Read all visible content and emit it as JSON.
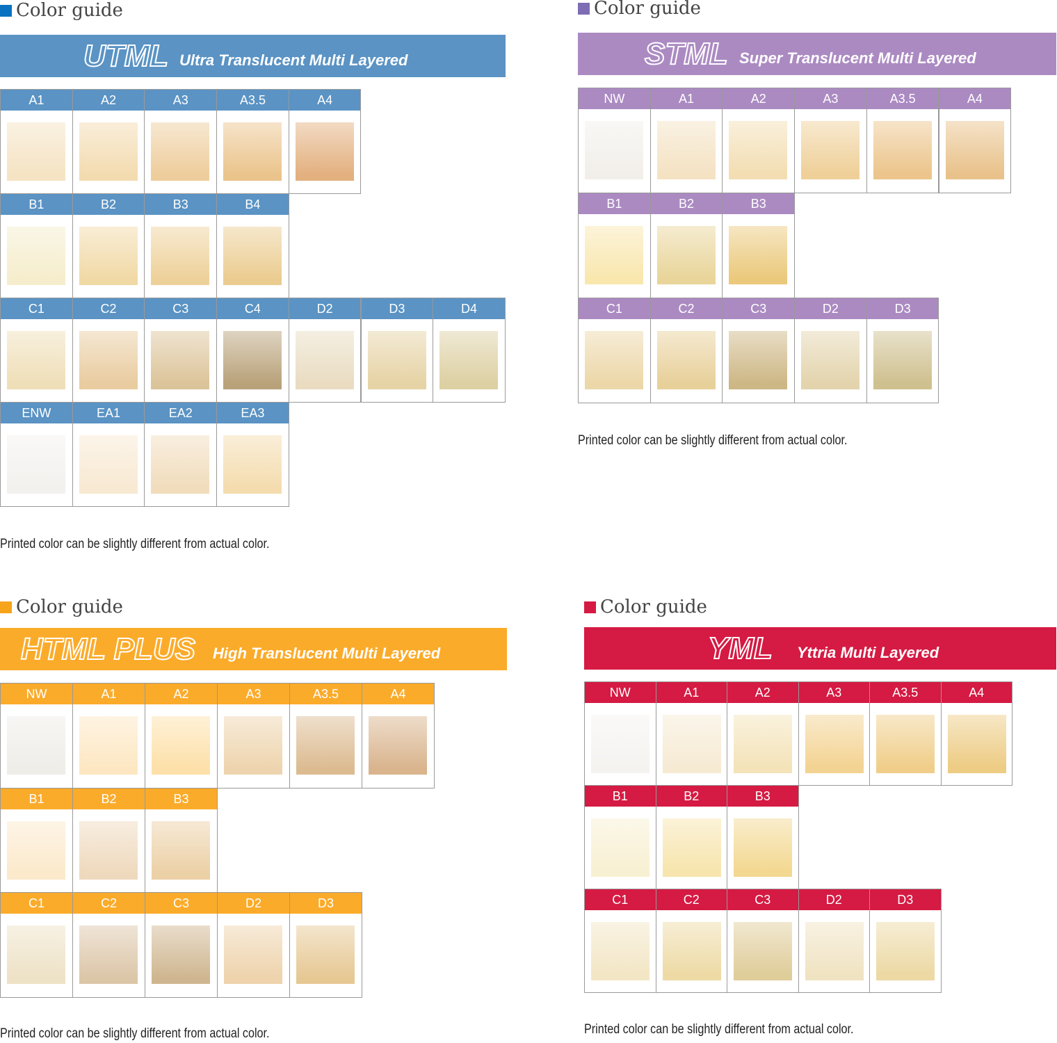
{
  "panels": [
    {
      "heading": "Color guide",
      "name": "UTML",
      "subtitle": "Ultra Translucent Multi Layered",
      "note": "Printed color can be slightly different from actual color.",
      "rows": [
        [
          {
            "label": "A1",
            "color": "#f5e3c3"
          },
          {
            "label": "A2",
            "color": "#f3dbb0"
          },
          {
            "label": "A3",
            "color": "#eecd9c"
          },
          {
            "label": "A3.5",
            "color": "#ebc48c"
          },
          {
            "label": "A4",
            "color": "#e3b07f"
          }
        ],
        [
          {
            "label": "B1",
            "color": "#f5edcc"
          },
          {
            "label": "B2",
            "color": "#f1d9a6"
          },
          {
            "label": "B3",
            "color": "#eed19a"
          },
          {
            "label": "B4",
            "color": "#ebcc90"
          }
        ],
        [
          {
            "label": "C1",
            "color": "#efdfb8"
          },
          {
            "label": "C2",
            "color": "#e9cca0"
          },
          {
            "label": "C3",
            "color": "#dcc49a"
          },
          {
            "label": "C4",
            "color": "#b9a27a"
          },
          {
            "label": "D2",
            "color": "#e9dcc1"
          },
          {
            "label": "D3",
            "color": "#e6d3a5"
          },
          {
            "label": "D4",
            "color": "#ddd0a3"
          }
        ],
        [
          {
            "label": "ENW",
            "color": "#f3f1ee"
          },
          {
            "label": "EA1",
            "color": "#f8e9d2"
          },
          {
            "label": "EA2",
            "color": "#f1dcbc"
          },
          {
            "label": "EA3",
            "color": "#f4dcae"
          }
        ]
      ]
    },
    {
      "heading": "Color guide",
      "name": "STML",
      "subtitle": "Super Translucent Multi Layered",
      "note": "Printed color can be slightly different from actual color.",
      "rows": [
        [
          {
            "label": "NW",
            "color": "#f2efea"
          },
          {
            "label": "A1",
            "color": "#f4e2c3"
          },
          {
            "label": "A2",
            "color": "#f3deb3"
          },
          {
            "label": "A3",
            "color": "#efd099"
          },
          {
            "label": "A3.5",
            "color": "#ecc58c"
          },
          {
            "label": "A4",
            "color": "#e9c28b"
          }
        ],
        [
          {
            "label": "B1",
            "color": "#f9e7ae"
          },
          {
            "label": "B2",
            "color": "#e9d59a"
          },
          {
            "label": "B3",
            "color": "#ebc97c"
          }
        ],
        [
          {
            "label": "C1",
            "color": "#ecd7a8"
          },
          {
            "label": "C2",
            "color": "#e8d09a"
          },
          {
            "label": "C3",
            "color": "#cdb785"
          },
          {
            "label": "D2",
            "color": "#e3d4ad"
          },
          {
            "label": "D3",
            "color": "#cfc08f"
          }
        ]
      ]
    },
    {
      "heading": "Color guide",
      "name": "HTML PLUS",
      "subtitle": "High Translucent Multi Layered",
      "note": "Printed color can be slightly different from actual color.",
      "rows": [
        [
          {
            "label": "NW",
            "color": "#efede8"
          },
          {
            "label": "A1",
            "color": "#fde7c2"
          },
          {
            "label": "A2",
            "color": "#fde0a9"
          },
          {
            "label": "A3",
            "color": "#eed4ae"
          },
          {
            "label": "A3.5",
            "color": "#dcbb91"
          },
          {
            "label": "A4",
            "color": "#d9b48d"
          }
        ],
        [
          {
            "label": "B1",
            "color": "#fce9cb"
          },
          {
            "label": "B2",
            "color": "#efd9bd"
          },
          {
            "label": "B3",
            "color": "#ecd0a6"
          }
        ],
        [
          {
            "label": "C1",
            "color": "#eee2c6"
          },
          {
            "label": "C2",
            "color": "#dcc6a8"
          },
          {
            "label": "C3",
            "color": "#cfb690"
          },
          {
            "label": "D2",
            "color": "#eed3ac"
          },
          {
            "label": "D3",
            "color": "#e6c893"
          }
        ]
      ]
    },
    {
      "heading": "Color guide",
      "name": "YML",
      "subtitle": "Yttria Multi Layered",
      "note": "Printed color can be slightly different from actual color.",
      "rows": [
        [
          {
            "label": "NW",
            "color": "#f5f3f0"
          },
          {
            "label": "A1",
            "color": "#f6ead3"
          },
          {
            "label": "A2",
            "color": "#f4e3b9"
          },
          {
            "label": "A3",
            "color": "#f3d392"
          },
          {
            "label": "A3.5",
            "color": "#f0ce8a"
          },
          {
            "label": "A4",
            "color": "#edcc84"
          }
        ],
        [
          {
            "label": "B1",
            "color": "#f8f0d2"
          },
          {
            "label": "B2",
            "color": "#f7e5ad"
          },
          {
            "label": "B3",
            "color": "#f3d891"
          }
        ],
        [
          {
            "label": "C1",
            "color": "#f3e6c5"
          },
          {
            "label": "C2",
            "color": "#eddaa5"
          },
          {
            "label": "C3",
            "color": "#dfcd9a"
          },
          {
            "label": "D2",
            "color": "#f0e3c2"
          },
          {
            "label": "D3",
            "color": "#ecd9a4"
          }
        ]
      ]
    }
  ]
}
